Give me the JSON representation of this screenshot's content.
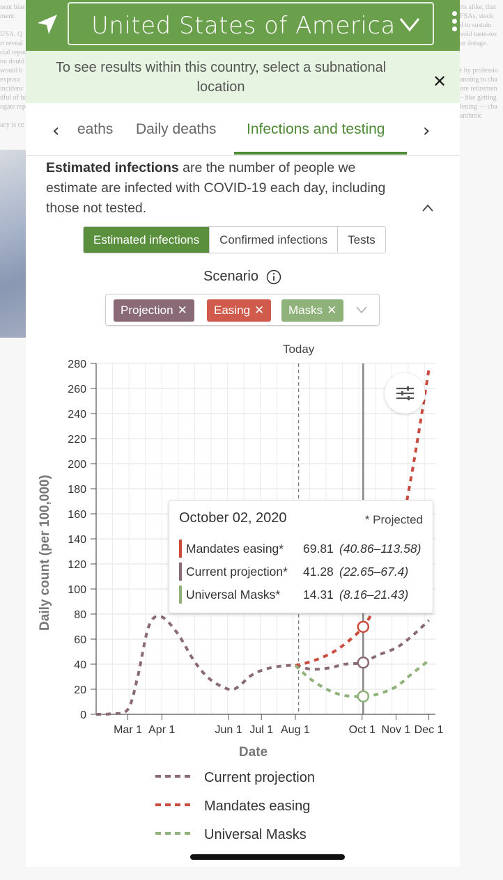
{
  "header": {
    "country": "United States of America",
    "notice": "To see results within this country, select a subnational location"
  },
  "tabs": {
    "items": [
      "eaths",
      "Daily deaths",
      "Infections and testing"
    ],
    "active": "Infections and testing"
  },
  "description": {
    "bold": "Estimated infections",
    "rest": " are the number of people we estimate are infected with COVID-19 each day, including those not tested."
  },
  "segments": {
    "items": [
      "Estimated infections",
      "Confirmed infections",
      "Tests"
    ],
    "active": "Estimated infections"
  },
  "scenario": {
    "label": "Scenario",
    "chips": [
      {
        "label": "Projection",
        "color": "#8a6a76"
      },
      {
        "label": "Easing",
        "color": "#d05a4c"
      },
      {
        "label": "Masks",
        "color": "#8fb17a"
      }
    ]
  },
  "chart_data": {
    "type": "line",
    "today_label": "Today",
    "xlabel": "Date",
    "ylabel": "Daily count (per 100,000)",
    "ylim": [
      0,
      280
    ],
    "yticks": [
      0,
      20,
      40,
      60,
      80,
      100,
      120,
      140,
      160,
      180,
      200,
      220,
      240,
      260,
      280
    ],
    "xticks": [
      "Mar 1",
      "Apr 1",
      "Jun 1",
      "Jul 1",
      "Aug 1",
      "Oct 1",
      "Nov 1",
      "Dec 1"
    ],
    "grid": true,
    "legend_position": "bottom",
    "series": [
      {
        "name": "Current projection",
        "color": "#8a6a76",
        "points": [
          [
            "Feb 1",
            0
          ],
          [
            "Feb 15",
            0.5
          ],
          [
            "Mar 1",
            4
          ],
          [
            "Mar 10",
            30
          ],
          [
            "Mar 20",
            70
          ],
          [
            "Mar 31",
            78
          ],
          [
            "Apr 15",
            65
          ],
          [
            "May 1",
            42
          ],
          [
            "May 15",
            28
          ],
          [
            "Jun 1",
            20
          ],
          [
            "Jun 10",
            22
          ],
          [
            "Jun 20",
            30
          ],
          [
            "Jul 1",
            35
          ],
          [
            "Jul 15",
            38
          ],
          [
            "Aug 1",
            39
          ],
          [
            "Aug 15",
            36
          ],
          [
            "Sep 1",
            37
          ],
          [
            "Sep 15",
            40
          ],
          [
            "Oct 2",
            41.28
          ],
          [
            "Oct 15",
            47
          ],
          [
            "Nov 1",
            53
          ],
          [
            "Nov 15",
            62
          ],
          [
            "Dec 1",
            75
          ]
        ]
      },
      {
        "name": "Mandates easing",
        "color": "#cc4b3f",
        "points": [
          [
            "Aug 1",
            39
          ],
          [
            "Aug 15",
            42
          ],
          [
            "Sep 1",
            48
          ],
          [
            "Sep 15",
            56
          ],
          [
            "Oct 2",
            69.81
          ],
          [
            "Oct 15",
            90
          ],
          [
            "Nov 1",
            130
          ],
          [
            "Nov 15",
            190
          ],
          [
            "Dec 1",
            275
          ]
        ]
      },
      {
        "name": "Universal Masks",
        "color": "#8fb17a",
        "points": [
          [
            "Aug 1",
            39
          ],
          [
            "Aug 15",
            28
          ],
          [
            "Sep 1",
            19
          ],
          [
            "Sep 15",
            15
          ],
          [
            "Oct 2",
            14.31
          ],
          [
            "Oct 15",
            16
          ],
          [
            "Nov 1",
            22
          ],
          [
            "Nov 15",
            32
          ],
          [
            "Dec 1",
            43
          ]
        ]
      }
    ],
    "tooltip": {
      "date": "October 02, 2020",
      "note": "* Projected",
      "rows": [
        {
          "label": "Mandates easing*",
          "value": "69.81",
          "range": "(40.86–113.58)",
          "color": "#cc4b3f"
        },
        {
          "label": "Current projection*",
          "value": "41.28",
          "range": "(22.65–67.4)",
          "color": "#8a6a76"
        },
        {
          "label": "Universal Masks*",
          "value": "14.31",
          "range": "(8.16–21.43)",
          "color": "#8fb17a"
        }
      ]
    }
  },
  "legend": [
    {
      "label": "Current projection",
      "color": "#8a6a76"
    },
    {
      "label": "Mandates easing",
      "color": "#cc4b3f"
    },
    {
      "label": "Universal Masks",
      "color": "#8fb17a"
    }
  ],
  "background_text": {
    "left": [
      "nent bias",
      "ment.",
      "",
      "USA. Q",
      "rt reveal",
      "cial repor",
      "ou doubl",
      "would b",
      "exposu",
      "incidenc",
      "dful of hi",
      "ogate rep",
      "",
      "acy is ce"
    ],
    "right": [
      "rts alike, that",
      "FSAs, stock",
      "d to sustain",
      "void taste-tes",
      "ur dotage.",
      "",
      "",
      "r by professio",
      "anning to cha",
      "ore retiremen",
      "– like getting",
      "lening — cha",
      "anthmic"
    ]
  }
}
